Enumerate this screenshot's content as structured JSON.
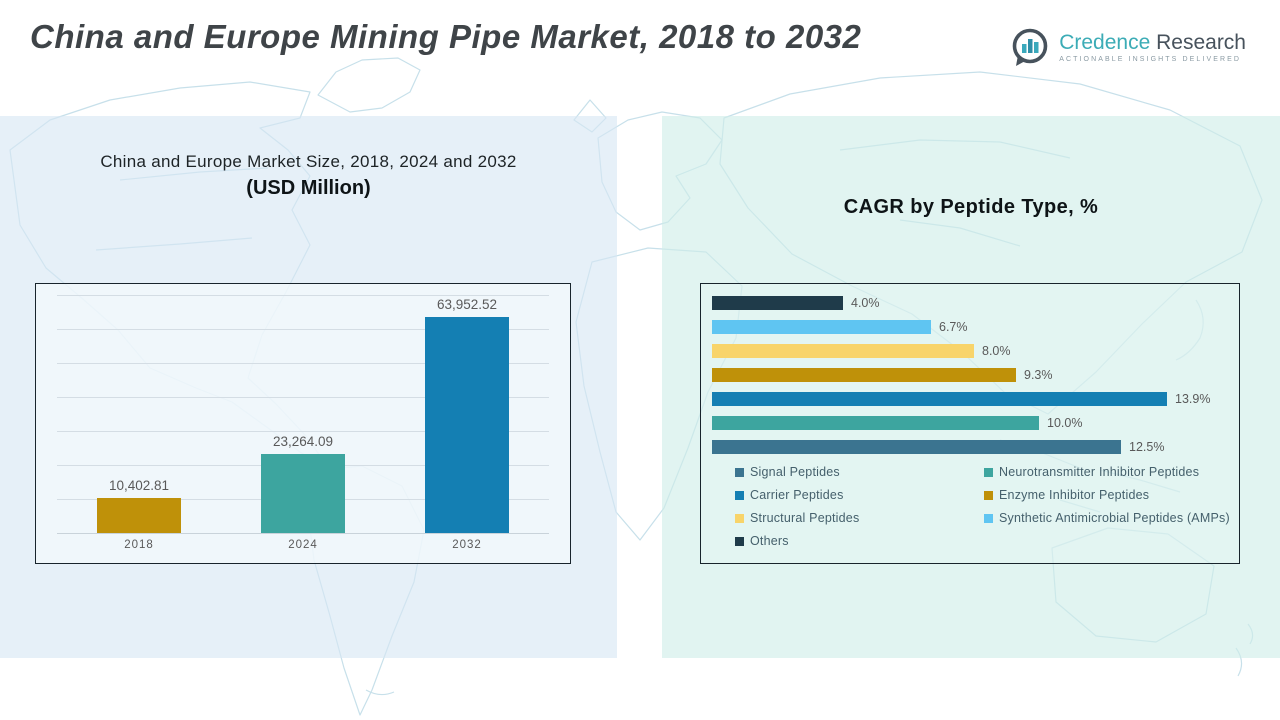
{
  "header": {
    "title": "China and Europe Mining Pipe Market, 2018 to 2032",
    "logo": {
      "brand_primary": "Credence",
      "brand_secondary": "Research",
      "tagline": "Actionable Insights Delivered",
      "brand_color": "#3cacb6",
      "accent_color": "#47525c"
    }
  },
  "left_section": {
    "heading_line1": "China and Europe Market Size, 2018, 2024 and 2032",
    "heading_line2": "(USD Million)"
  },
  "right_section": {
    "heading": "CAGR by Peptide Type, %"
  },
  "chart_data": [
    {
      "type": "bar",
      "title": "China and Europe Market Size, 2018, 2024 and 2032 (USD Million)",
      "categories": [
        "2018",
        "2024",
        "2032"
      ],
      "values": [
        10402.81,
        23264.09,
        63952.52
      ],
      "data_labels": [
        "10,402.81",
        "23,264.09",
        "63,952.52"
      ],
      "colors": [
        "#bf9109",
        "#3da59f",
        "#147fb3"
      ],
      "xlabel": "",
      "ylabel": "USD Million",
      "ylim": [
        0,
        70000
      ],
      "gridlines": true,
      "legend_position": "none"
    },
    {
      "type": "bar",
      "orientation": "horizontal",
      "title": "CAGR by Peptide Type, %",
      "xlim": [
        0,
        14
      ],
      "gridlines": false,
      "legend_position": "bottom",
      "bars_top_to_bottom": [
        {
          "label": "Others",
          "value": 4.0,
          "display": "4.0%",
          "color": "#1f3b4a"
        },
        {
          "label": "Synthetic Antimicrobial Peptides (AMPs)",
          "value": 6.7,
          "display": "6.7%",
          "color": "#5fc5f2"
        },
        {
          "label": "Structural Peptides",
          "value": 8.0,
          "display": "8.0%",
          "color": "#f8d46a"
        },
        {
          "label": "Enzyme Inhibitor Peptides",
          "value": 9.3,
          "display": "9.3%",
          "color": "#bf9109"
        },
        {
          "label": "Carrier Peptides",
          "value": 13.9,
          "display": "13.9%",
          "color": "#147fb3"
        },
        {
          "label": "Neurotransmitter Inhibitor Peptides",
          "value": 10.0,
          "display": "10.0%",
          "color": "#3da59f"
        },
        {
          "label": "Signal Peptides",
          "value": 12.5,
          "display": "12.5%",
          "color": "#3b7490"
        }
      ],
      "legend": [
        {
          "label": "Signal Peptides",
          "color": "#3b7490"
        },
        {
          "label": "Neurotransmitter Inhibitor Peptides",
          "color": "#3da59f"
        },
        {
          "label": "Carrier Peptides",
          "color": "#147fb3"
        },
        {
          "label": "Enzyme Inhibitor Peptides",
          "color": "#bf9109"
        },
        {
          "label": "Structural Peptides",
          "color": "#f8d46a"
        },
        {
          "label": "Synthetic Antimicrobial Peptides (AMPs)",
          "color": "#5fc5f2"
        },
        {
          "label": "Others",
          "color": "#1f3b4a"
        }
      ]
    }
  ]
}
